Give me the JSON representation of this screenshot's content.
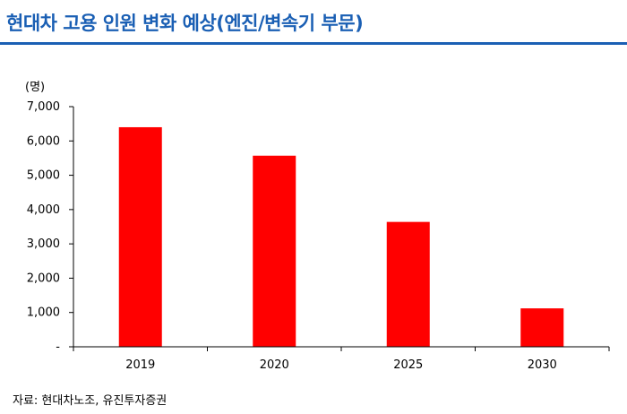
{
  "header": {
    "title": "현대차 고용 인원 변화 예상(엔진/변속기 부문)"
  },
  "chart_data": {
    "type": "bar",
    "unit_label": "(명)",
    "categories": [
      "2019",
      "2020",
      "2025",
      "2030"
    ],
    "values": [
      6400,
      5570,
      3640,
      1120
    ],
    "y_ticks": [
      "-",
      "1,000",
      "2,000",
      "3,000",
      "4,000",
      "5,000",
      "6,000",
      "7,000"
    ],
    "ylim": [
      0,
      7000
    ],
    "bar_color": "#ff0000",
    "grid": false,
    "legend": "none"
  },
  "footer": {
    "source": "자료: 현대차노조, 유진투자증권"
  }
}
